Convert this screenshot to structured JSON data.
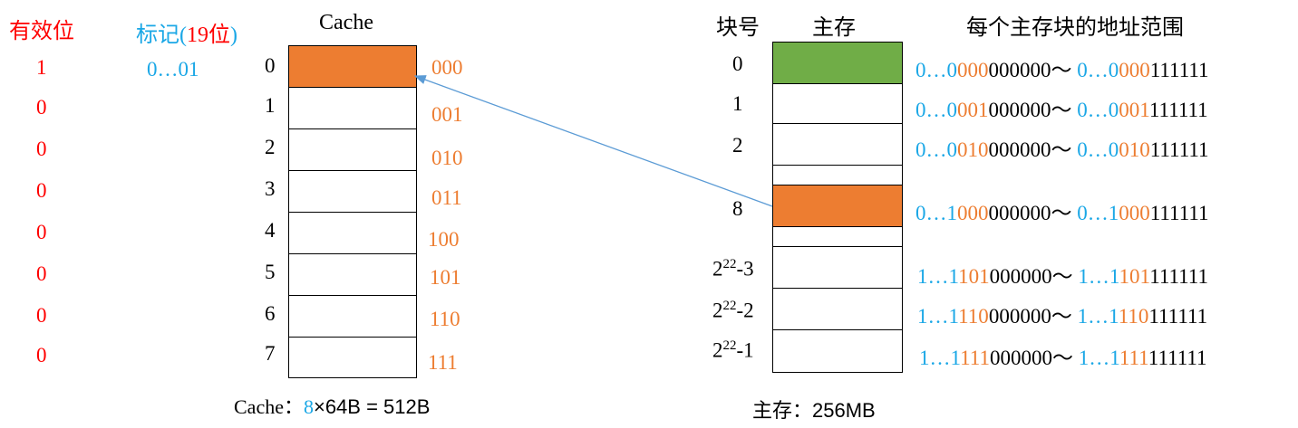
{
  "headers": {
    "valid": "有效位",
    "tag_prefix": "标记(",
    "tag_bits": "19位",
    "tag_suffix": ")",
    "cache": "Cache",
    "block_no": "块号",
    "main_mem": "主存",
    "addr_range": "每个主存块的地址范围"
  },
  "valid_bits": [
    "1",
    "0",
    "0",
    "0",
    "0",
    "0",
    "0",
    "0"
  ],
  "tag_value": "0…01",
  "cache_lines": {
    "indices": [
      "0",
      "1",
      "2",
      "3",
      "4",
      "5",
      "6",
      "7"
    ],
    "binary": [
      "000",
      "001",
      "010",
      "011",
      "100",
      "101",
      "110",
      "111"
    ]
  },
  "cache_caption": {
    "prefix": "Cache：",
    "lines": "8",
    "rest": "×64B = 512B"
  },
  "memory": {
    "blocks": [
      {
        "label": "0",
        "color": "#70ad47",
        "start": [
          "0…0",
          "000",
          "000000～ "
        ],
        "end": [
          "0…0",
          "000",
          "111111"
        ]
      },
      {
        "label": "1",
        "color": "#ffffff",
        "start": [
          "0…0",
          "001",
          "000000～ "
        ],
        "end": [
          "0…0",
          "001",
          "111111"
        ]
      },
      {
        "label": "2",
        "color": "#ffffff",
        "start": [
          "0…0",
          "010",
          "000000～ "
        ],
        "end": [
          "0…0",
          "010",
          "111111"
        ]
      },
      {
        "label": "8",
        "color": "#ed7d31",
        "start": [
          "0…1",
          "000",
          "000000～ "
        ],
        "end": [
          "0…1",
          "000",
          "111111"
        ]
      },
      {
        "label_base": "2",
        "label_exp": "22",
        "label_tail": "-3",
        "color": "#ffffff",
        "start": [
          "1…1",
          "101",
          "000000～ "
        ],
        "end": [
          "1…1",
          "101",
          "111111"
        ]
      },
      {
        "label_base": "2",
        "label_exp": "22",
        "label_tail": "-2",
        "color": "#ffffff",
        "start": [
          "1…1",
          "110",
          "000000～ "
        ],
        "end": [
          "1…1",
          "110",
          "111111"
        ]
      },
      {
        "label_base": "2",
        "label_exp": "22",
        "label_tail": "-1",
        "color": "#ffffff",
        "start": [
          "1…1",
          "111",
          "000000～ "
        ],
        "end": [
          "1…1",
          "111",
          "111111"
        ]
      }
    ]
  },
  "mem_caption": {
    "prefix": "主存：",
    "value": "256MB"
  },
  "colors": {
    "valid": "#ff0000",
    "tag": "#1aa7e6",
    "binary": "#ed7d31",
    "hit": "#ed7d31",
    "green": "#70ad47",
    "arrow": "#5b9bd5"
  }
}
